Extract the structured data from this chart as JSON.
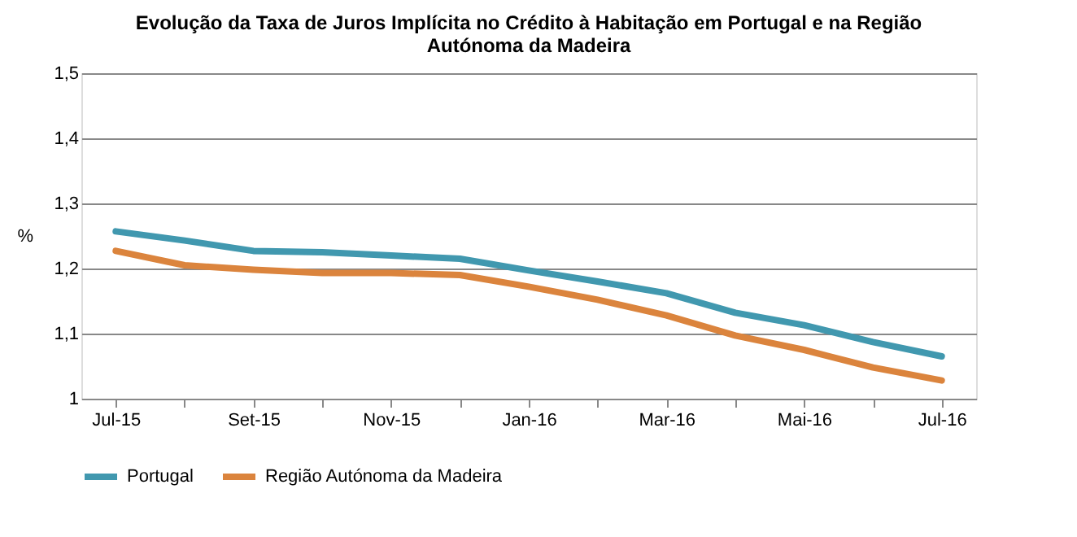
{
  "chart_data": {
    "type": "line",
    "title": "Evolução da Taxa de Juros Implícita no Crédito à Habitação em Portugal e na Região Autónoma da Madeira",
    "ylabel": "%",
    "categories": [
      "Jul-15",
      null,
      "Set-15",
      null,
      "Nov-15",
      null,
      "Jan-16",
      null,
      "Mar-16",
      null,
      "Mai-16",
      null,
      "Jul-16"
    ],
    "series": [
      {
        "name": "Portugal",
        "color": "#4198af",
        "values": [
          1.257,
          1.243,
          1.227,
          1.225,
          1.22,
          1.215,
          1.197,
          1.18,
          1.162,
          1.132,
          1.113,
          1.087,
          1.065
        ]
      },
      {
        "name": "Região Autónoma da Madeira",
        "color": "#db843d",
        "values": [
          1.227,
          1.205,
          1.198,
          1.193,
          1.193,
          1.19,
          1.172,
          1.152,
          1.128,
          1.097,
          1.075,
          1.048,
          1.028
        ]
      }
    ],
    "ylim": [
      1,
      1.5
    ],
    "yticks": [
      1,
      {
        "value": 1.1,
        "label": "1,1"
      },
      {
        "value": 1.2,
        "label": "1,2"
      },
      {
        "value": 1.3,
        "label": "1,3"
      },
      {
        "value": 1.4,
        "label": "1,4"
      },
      {
        "value": 1.5,
        "label": "1,5"
      }
    ],
    "grid": "y",
    "legend": "bottom",
    "marker": "none",
    "line_style": "solid"
  }
}
